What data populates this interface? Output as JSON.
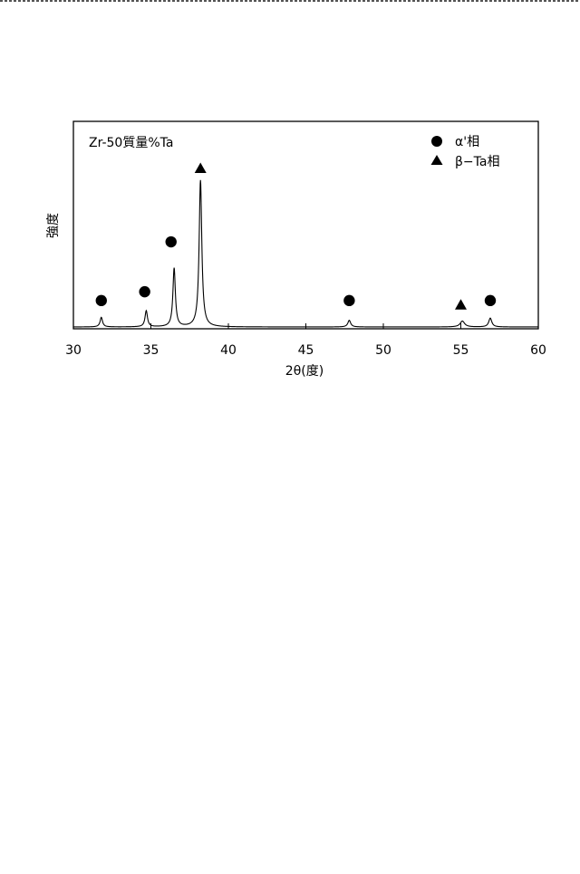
{
  "chart_data": {
    "type": "line",
    "title": "Zr-50質量%Ta",
    "xlabel": "2θ(度)",
    "ylabel": "強度",
    "xlim": [
      30,
      60
    ],
    "ylim": [
      0,
      100
    ],
    "xticks": [
      30,
      35,
      40,
      45,
      50,
      55,
      60
    ],
    "grid": false,
    "legend_position": "top-right",
    "legend": [
      {
        "marker": "circle",
        "label": "α'相"
      },
      {
        "marker": "triangle",
        "label": "β−Ta相"
      }
    ],
    "series": [
      {
        "peaks": [
          {
            "x": 31.8,
            "height": 6.5,
            "width": 0.12,
            "phase": "circle"
          },
          {
            "x": 34.7,
            "height": 11.0,
            "width": 0.12,
            "phase": "circle"
          },
          {
            "x": 36.5,
            "height": 40.0,
            "width": 0.12,
            "phase": "circle"
          },
          {
            "x": 38.2,
            "height": 100.0,
            "width": 0.13,
            "phase": "triangle"
          },
          {
            "x": 47.8,
            "height": 4.5,
            "width": 0.14,
            "phase": "circle"
          },
          {
            "x": 55.1,
            "height": 4.0,
            "width": 0.22,
            "phase": "triangle"
          },
          {
            "x": 56.9,
            "height": 6.0,
            "width": 0.15,
            "phase": "circle"
          }
        ]
      }
    ],
    "markers": [
      {
        "x": 31.8,
        "level": 18,
        "shape": "circle"
      },
      {
        "x": 34.6,
        "level": 24,
        "shape": "circle"
      },
      {
        "x": 36.3,
        "level": 58,
        "shape": "circle"
      },
      {
        "x": 38.2,
        "level": 108,
        "shape": "triangle"
      },
      {
        "x": 47.8,
        "level": 18,
        "shape": "circle"
      },
      {
        "x": 55.0,
        "level": 15,
        "shape": "triangle"
      },
      {
        "x": 56.9,
        "level": 18,
        "shape": "circle"
      }
    ]
  }
}
